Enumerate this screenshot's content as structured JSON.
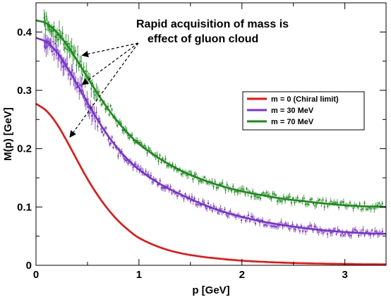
{
  "chart_data": {
    "type": "line",
    "xlabel": "p [GeV]",
    "ylabel": "M(p) [GeV]",
    "xlim": [
      0,
      3.4
    ],
    "ylim": [
      0,
      0.45
    ],
    "x_ticks": [
      0,
      1,
      2,
      3
    ],
    "x_tick_labels": [
      "0",
      "1",
      "2",
      "3"
    ],
    "y_ticks": [
      0,
      0.1,
      0.2,
      0.3,
      0.4
    ],
    "y_tick_labels": [
      "0",
      "0.1",
      "0.2",
      "0.3",
      "0.4"
    ],
    "grid": false,
    "legend_position": "right",
    "annotation": {
      "lines": [
        "Rapid acquisition of mass is",
        "effect of gluon cloud"
      ],
      "arrow_targets": [
        [
          0.45,
          0.36
        ],
        [
          0.45,
          0.31
        ],
        [
          0.33,
          0.22
        ]
      ]
    },
    "series": [
      {
        "name": "m = 0 (Chiral limit)",
        "color": "#ee1111",
        "x": [
          0.0,
          0.1,
          0.2,
          0.3,
          0.4,
          0.5,
          0.6,
          0.7,
          0.8,
          0.9,
          1.0,
          1.2,
          1.4,
          1.6,
          1.8,
          2.0,
          2.2,
          2.4,
          2.6,
          2.8,
          3.0,
          3.2,
          3.4
        ],
        "y": [
          0.277,
          0.265,
          0.243,
          0.213,
          0.18,
          0.148,
          0.12,
          0.096,
          0.076,
          0.06,
          0.047,
          0.031,
          0.021,
          0.015,
          0.011,
          0.008,
          0.006,
          0.0045,
          0.0035,
          0.0028,
          0.0022,
          0.0018,
          0.0015
        ]
      },
      {
        "name": "m = 30 MeV",
        "color": "#7733cc",
        "x": [
          0.0,
          0.1,
          0.2,
          0.3,
          0.4,
          0.5,
          0.6,
          0.7,
          0.8,
          0.9,
          1.0,
          1.2,
          1.4,
          1.6,
          1.8,
          2.0,
          2.2,
          2.4,
          2.6,
          2.8,
          3.0,
          3.2,
          3.4
        ],
        "y": [
          0.39,
          0.383,
          0.366,
          0.34,
          0.31,
          0.279,
          0.249,
          0.222,
          0.199,
          0.18,
          0.164,
          0.14,
          0.122,
          0.106,
          0.093,
          0.083,
          0.075,
          0.069,
          0.064,
          0.06,
          0.057,
          0.055,
          0.054
        ]
      },
      {
        "name": "m = 70 MeV",
        "color": "#1a8a1a",
        "x": [
          0.0,
          0.1,
          0.2,
          0.3,
          0.4,
          0.5,
          0.6,
          0.7,
          0.8,
          0.9,
          1.0,
          1.2,
          1.4,
          1.6,
          1.8,
          2.0,
          2.2,
          2.4,
          2.6,
          2.8,
          3.0,
          3.2,
          3.4
        ],
        "y": [
          0.42,
          0.415,
          0.4,
          0.378,
          0.351,
          0.322,
          0.294,
          0.268,
          0.245,
          0.225,
          0.208,
          0.183,
          0.163,
          0.148,
          0.136,
          0.127,
          0.12,
          0.114,
          0.11,
          0.106,
          0.103,
          0.101,
          0.1
        ]
      }
    ]
  }
}
